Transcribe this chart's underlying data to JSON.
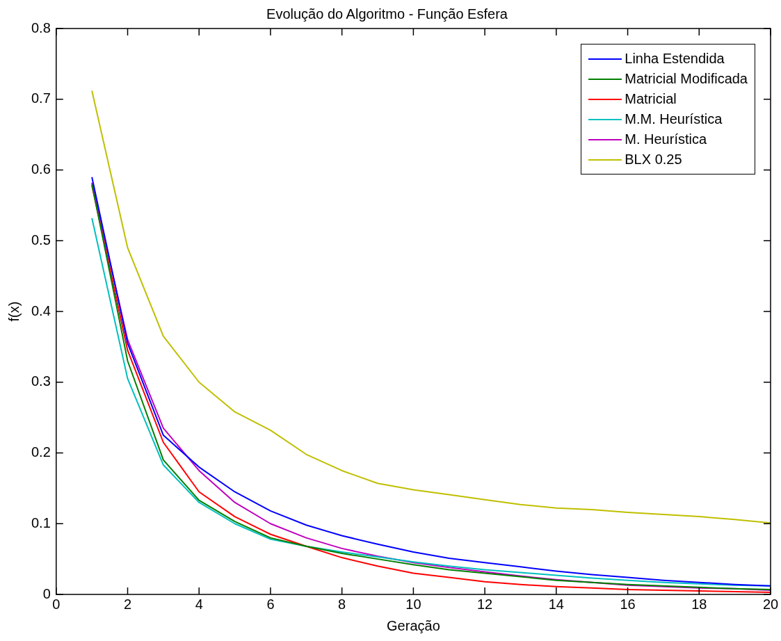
{
  "chart_data": {
    "type": "line",
    "title": "Evolução do Algoritmo - Função Esfera",
    "xlabel": "Geração",
    "ylabel": "f(x)",
    "x": [
      1,
      2,
      3,
      4,
      5,
      6,
      7,
      8,
      9,
      10,
      11,
      12,
      13,
      14,
      15,
      16,
      17,
      18,
      19,
      20
    ],
    "series": [
      {
        "name": "Linha Estendida",
        "color": "#0000ff",
        "values": [
          0.59,
          0.355,
          0.225,
          0.18,
          0.145,
          0.118,
          0.098,
          0.083,
          0.071,
          0.06,
          0.051,
          0.045,
          0.039,
          0.033,
          0.028,
          0.024,
          0.02,
          0.017,
          0.014,
          0.012
        ]
      },
      {
        "name": "Matricial Modificada",
        "color": "#008000",
        "values": [
          0.58,
          0.33,
          0.19,
          0.133,
          0.103,
          0.08,
          0.068,
          0.058,
          0.05,
          0.042,
          0.035,
          0.03,
          0.025,
          0.02,
          0.017,
          0.014,
          0.012,
          0.01,
          0.008,
          0.007
        ]
      },
      {
        "name": "Matricial",
        "color": "#ff0000",
        "values": [
          0.578,
          0.345,
          0.215,
          0.145,
          0.11,
          0.085,
          0.068,
          0.052,
          0.04,
          0.03,
          0.024,
          0.018,
          0.014,
          0.011,
          0.009,
          0.007,
          0.006,
          0.005,
          0.004,
          0.003
        ]
      },
      {
        "name": "M.M. Heurística",
        "color": "#00bfbf",
        "values": [
          0.532,
          0.305,
          0.183,
          0.13,
          0.1,
          0.078,
          0.068,
          0.06,
          0.053,
          0.046,
          0.04,
          0.035,
          0.031,
          0.027,
          0.023,
          0.02,
          0.017,
          0.015,
          0.013,
          0.012
        ]
      },
      {
        "name": "M. Heurística",
        "color": "#bf00bf",
        "values": [
          0.582,
          0.36,
          0.235,
          0.175,
          0.13,
          0.1,
          0.08,
          0.065,
          0.054,
          0.045,
          0.038,
          0.032,
          0.026,
          0.021,
          0.017,
          0.013,
          0.011,
          0.009,
          0.008,
          0.006
        ]
      },
      {
        "name": "BLX 0.25",
        "color": "#bfbf00",
        "values": [
          0.712,
          0.49,
          0.365,
          0.3,
          0.258,
          0.232,
          0.198,
          0.175,
          0.157,
          0.148,
          0.141,
          0.134,
          0.127,
          0.122,
          0.12,
          0.116,
          0.113,
          0.11,
          0.106,
          0.101
        ]
      }
    ],
    "xlim": [
      0,
      20
    ],
    "xticks": [
      0,
      2,
      4,
      6,
      8,
      10,
      12,
      14,
      16,
      18,
      20
    ],
    "ylim": [
      0,
      0.8
    ],
    "yticks": [
      0,
      0.1,
      0.2,
      0.3,
      0.4,
      0.5,
      0.6,
      0.7,
      0.8
    ],
    "grid": false,
    "legend": "top right",
    "marker": "none",
    "line_style": "solid"
  }
}
